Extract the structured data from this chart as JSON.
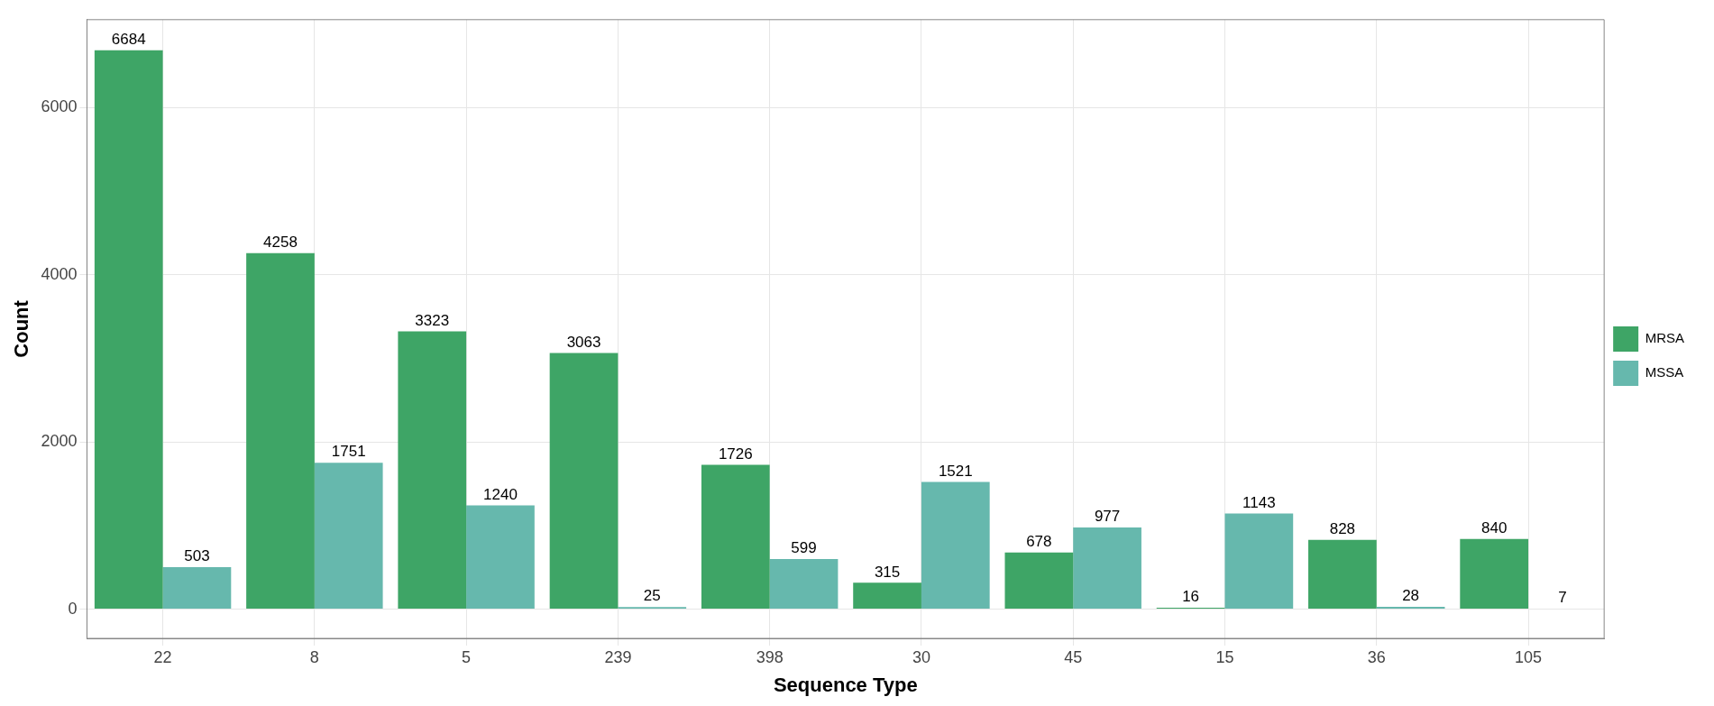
{
  "chart_data": {
    "type": "bar",
    "xlabel": "Sequence Type",
    "ylabel": "Count",
    "categories": [
      "22",
      "8",
      "5",
      "239",
      "398",
      "30",
      "45",
      "15",
      "36",
      "105"
    ],
    "series": [
      {
        "name": "MRSA",
        "color": "#3ea566",
        "values": [
          6684,
          4258,
          3323,
          3063,
          1726,
          315,
          678,
          16,
          828,
          840
        ]
      },
      {
        "name": "MSSA",
        "color": "#66b8ad",
        "values": [
          503,
          1751,
          1240,
          25,
          599,
          1521,
          977,
          1143,
          28,
          7
        ]
      }
    ],
    "ylim": [
      -350,
      7050
    ],
    "yticks": [
      0,
      2000,
      4000,
      6000
    ],
    "grid": true,
    "legend": "right",
    "data_labels": true
  }
}
